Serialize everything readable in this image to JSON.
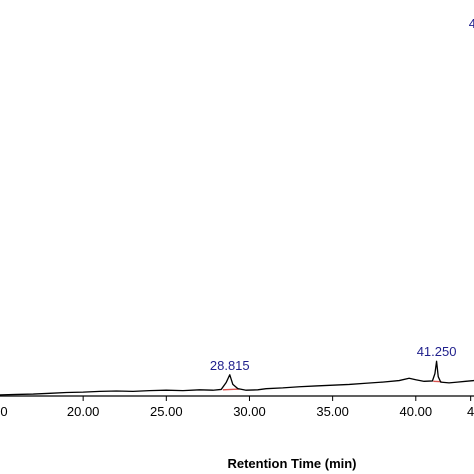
{
  "chart_data": {
    "type": "line",
    "title": "",
    "xlabel": "Retention Time (min)",
    "ylabel": "",
    "xlim": [
      15.0,
      43.5
    ],
    "ylim": [
      0,
      100
    ],
    "grid": false,
    "xticks": [
      "20.00",
      "25.00",
      "30.00",
      "35.00",
      "40.00",
      "4"
    ],
    "xtick_values": [
      20.0,
      25.0,
      30.0,
      35.0,
      40.0,
      43.3
    ],
    "partial_tick_labels": [
      {
        "text": "0",
        "x": 15.0
      }
    ],
    "series": [
      {
        "color": "#000000",
        "x": [
          15.0,
          16.0,
          17.0,
          18.0,
          19.0,
          20.0,
          21.0,
          22.0,
          23.0,
          24.0,
          25.0,
          26.0,
          27.0,
          27.8,
          28.3,
          28.6,
          28.815,
          29.0,
          29.3,
          29.8,
          30.5,
          31.0,
          32.0,
          33.0,
          34.0,
          35.0,
          36.0,
          37.0,
          38.0,
          39.0,
          39.6,
          40.0,
          40.5,
          41.0,
          41.15,
          41.25,
          41.35,
          41.5,
          42.0,
          42.5,
          43.0,
          43.5
        ],
        "y": [
          0.3,
          0.4,
          0.5,
          0.7,
          0.9,
          1.0,
          1.2,
          1.3,
          1.2,
          1.4,
          1.5,
          1.4,
          1.6,
          1.5,
          1.7,
          3.5,
          5.5,
          3.0,
          1.9,
          1.5,
          1.6,
          1.9,
          2.1,
          2.4,
          2.6,
          2.8,
          3.0,
          3.3,
          3.6,
          4.0,
          4.6,
          4.2,
          3.8,
          3.9,
          5.8,
          9.0,
          5.0,
          3.6,
          3.4,
          3.6,
          3.8,
          4.0
        ]
      }
    ],
    "baseline_markers": [
      {
        "color": "#d9534f",
        "x": [
          28.4,
          29.4
        ],
        "y": [
          1.6,
          1.8
        ]
      },
      {
        "color": "#d9534f",
        "x": [
          41.05,
          41.55
        ],
        "y": [
          3.8,
          3.7
        ]
      }
    ],
    "annotations": [
      {
        "text": "28.815",
        "x": 28.815
      },
      {
        "text": "41.250",
        "x": 41.25
      },
      {
        "text": "4",
        "x": 43.4
      }
    ]
  }
}
